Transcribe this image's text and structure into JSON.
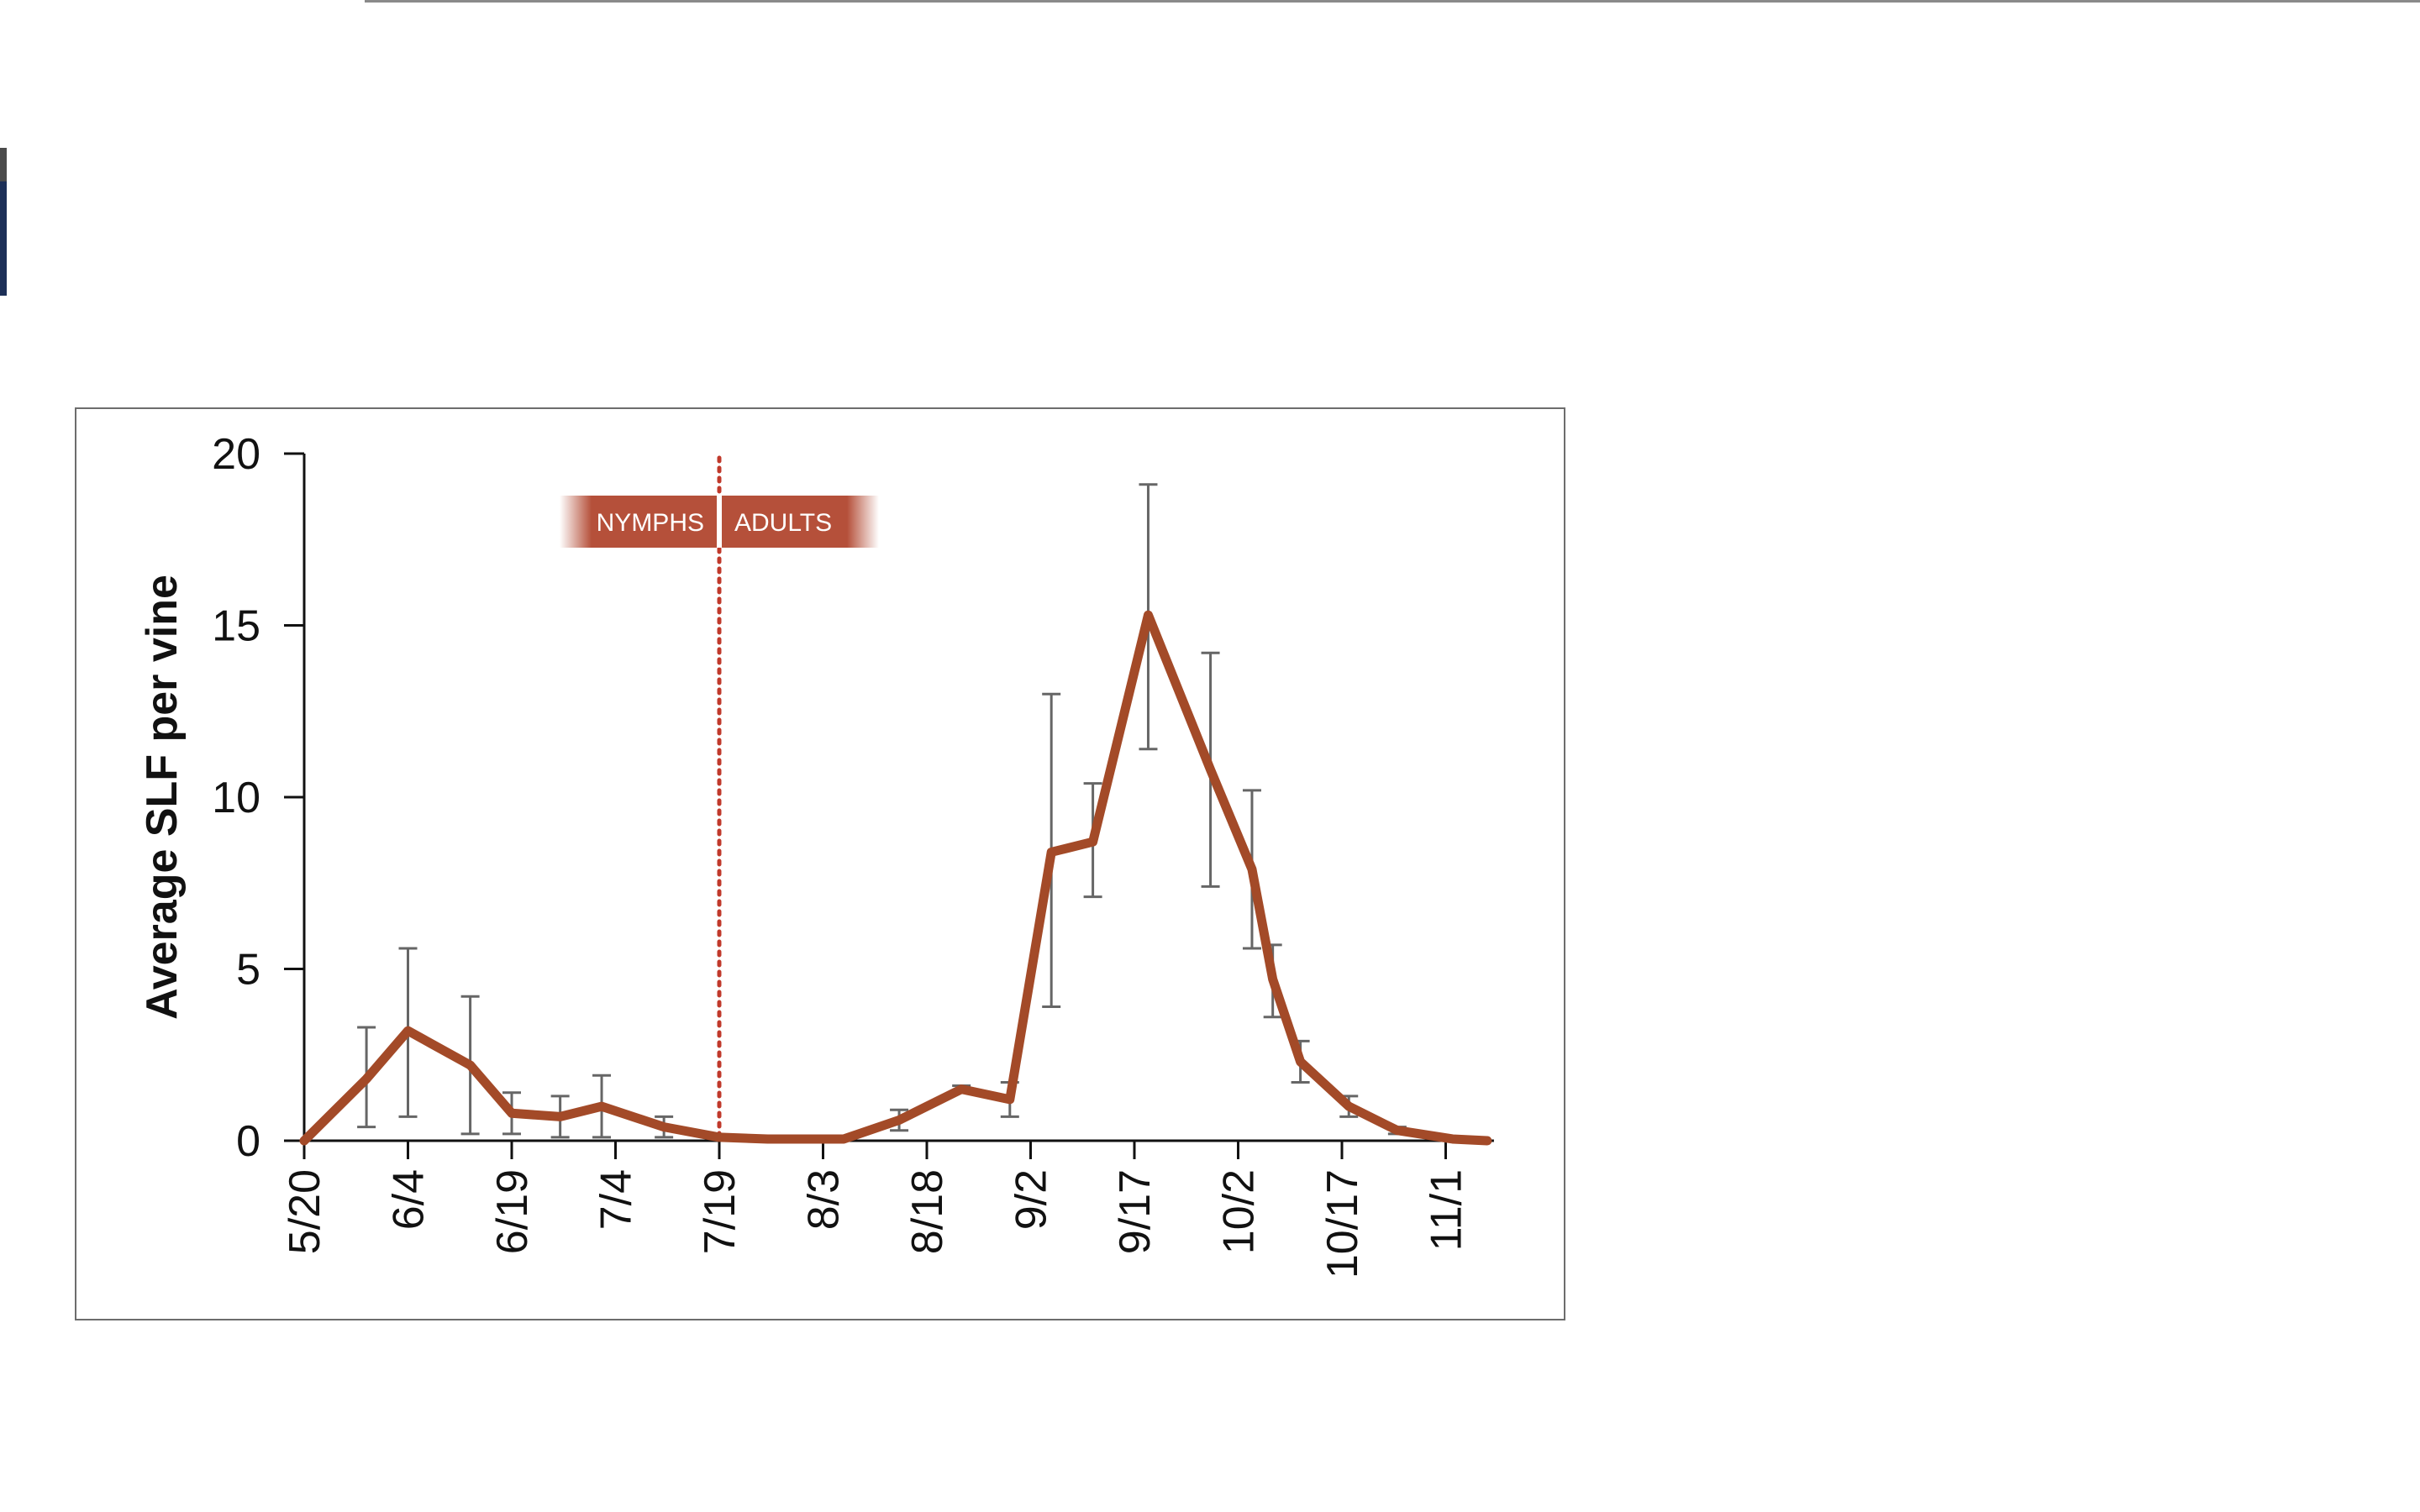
{
  "chart_data": {
    "type": "line",
    "ylabel": "Average SLF per vine",
    "xlabel": "",
    "ylim": [
      0,
      20
    ],
    "yticks": [
      0,
      5,
      10,
      15,
      20
    ],
    "xtick_labels": [
      "5/20",
      "6/4",
      "6/19",
      "7/4",
      "7/19",
      "8/3",
      "8/18",
      "9/2",
      "9/17",
      "10/2",
      "10/17",
      "11/1"
    ],
    "x_unit": "days after 5/20",
    "grid": false,
    "stage_band": {
      "left_label": "NYMPHS",
      "right_label": "ADULTS",
      "divider_x": "7/19"
    },
    "colors": {
      "line": "#a34a28",
      "band": "#b5503a",
      "divider": "#c0392b",
      "error_bar": "#666666"
    },
    "series": [
      {
        "points": [
          {
            "x": 0,
            "y": 0.0,
            "err": null
          },
          {
            "x": 9,
            "y": 1.8,
            "err": [
              0.4,
              3.3
            ]
          },
          {
            "x": 15,
            "y": 3.2,
            "err": [
              0.7,
              5.6
            ]
          },
          {
            "x": 24,
            "y": 2.2,
            "err": [
              0.2,
              4.2
            ]
          },
          {
            "x": 30,
            "y": 0.8,
            "err": [
              0.2,
              1.4
            ]
          },
          {
            "x": 37,
            "y": 0.7,
            "err": [
              0.1,
              1.3
            ]
          },
          {
            "x": 43,
            "y": 1.0,
            "err": [
              0.1,
              1.9
            ]
          },
          {
            "x": 52,
            "y": 0.4,
            "err": [
              0.1,
              0.7
            ]
          },
          {
            "x": 60,
            "y": 0.1,
            "err": null
          },
          {
            "x": 67,
            "y": 0.05,
            "err": null
          },
          {
            "x": 78,
            "y": 0.05,
            "err": null
          },
          {
            "x": 86,
            "y": 0.6,
            "err": [
              0.3,
              0.9
            ]
          },
          {
            "x": 95,
            "y": 1.5,
            "err": [
              1.4,
              1.6
            ]
          },
          {
            "x": 102,
            "y": 1.2,
            "err": [
              0.7,
              1.7
            ]
          },
          {
            "x": 108,
            "y": 8.4,
            "err": [
              3.9,
              13.0
            ]
          },
          {
            "x": 114,
            "y": 8.7,
            "err": [
              7.1,
              10.4
            ]
          },
          {
            "x": 122,
            "y": 15.3,
            "err": [
              11.4,
              19.1
            ]
          },
          {
            "x": 131,
            "y": 10.8,
            "err": [
              7.4,
              14.2
            ]
          },
          {
            "x": 137,
            "y": 7.9,
            "err": [
              5.6,
              10.2
            ]
          },
          {
            "x": 140,
            "y": 4.7,
            "err": [
              3.6,
              5.7
            ]
          },
          {
            "x": 144,
            "y": 2.3,
            "err": [
              1.7,
              2.9
            ]
          },
          {
            "x": 151,
            "y": 1.0,
            "err": [
              0.7,
              1.3
            ]
          },
          {
            "x": 158,
            "y": 0.3,
            "err": [
              0.2,
              0.4
            ]
          },
          {
            "x": 166,
            "y": 0.05,
            "err": null
          },
          {
            "x": 171,
            "y": 0.0,
            "err": null
          }
        ]
      }
    ]
  }
}
